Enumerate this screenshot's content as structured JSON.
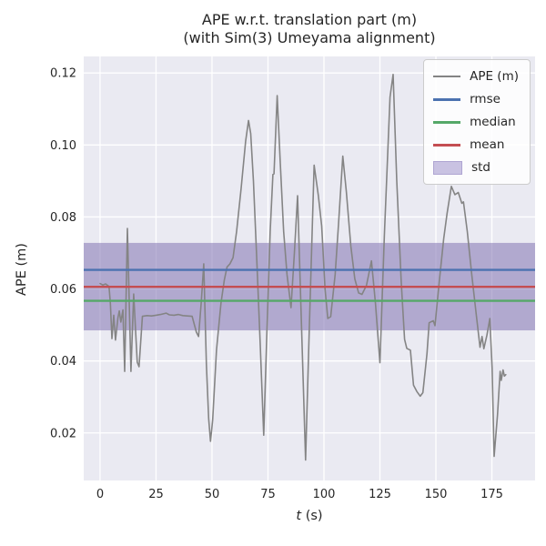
{
  "chart_data": {
    "type": "line",
    "title_line1": "APE w.r.t. translation part (m)",
    "title_line2": "(with Sim(3) Umeyama alignment)",
    "xlabel_var": "t",
    "xlabel_unit": " (s)",
    "ylabel": "APE (m)",
    "xlim": [
      -7.3,
      194.3
    ],
    "ylim": [
      0.0068,
      0.1246
    ],
    "grid": true,
    "legend_position": "upper right",
    "xticks": [
      {
        "label": "0",
        "value": 0
      },
      {
        "label": "25",
        "value": 25
      },
      {
        "label": "50",
        "value": 50
      },
      {
        "label": "75",
        "value": 75
      },
      {
        "label": "100",
        "value": 100
      },
      {
        "label": "125",
        "value": 125
      },
      {
        "label": "150",
        "value": 150
      },
      {
        "label": "175",
        "value": 175
      }
    ],
    "yticks": [
      {
        "label": "0.02",
        "value": 0.02
      },
      {
        "label": "0.04",
        "value": 0.04
      },
      {
        "label": "0.06",
        "value": 0.06
      },
      {
        "label": "0.08",
        "value": 0.08
      },
      {
        "label": "0.10",
        "value": 0.1
      },
      {
        "label": "0.12",
        "value": 0.12
      }
    ],
    "stats": {
      "rmse": 0.0653,
      "mean": 0.0606,
      "median": 0.0567,
      "std_low": 0.0485,
      "std_high": 0.0728
    },
    "series": {
      "name": "APE (m)",
      "t": [
        0,
        1.2,
        2.5,
        4.0,
        4.6,
        5.3,
        6.1,
        6.9,
        8.0,
        8.6,
        9.3,
        10.2,
        11.0,
        12.2,
        13.8,
        15.0,
        16.6,
        17.4,
        18.9,
        21,
        23,
        25,
        27,
        29.5,
        31,
        33,
        35,
        37,
        39,
        41.1,
        43,
        44,
        45.2,
        46.3,
        47.5,
        48.5,
        49.3,
        50.3,
        52,
        54,
        55.5,
        56.7,
        58,
        59.4,
        61,
        63,
        65,
        66.3,
        67.3,
        68.5,
        70,
        71.5,
        73.1,
        74.5,
        76,
        77.2,
        77.7,
        79.1,
        80.5,
        82,
        83.5,
        85.3,
        86.8,
        88.2,
        90.2,
        91.8,
        93.5,
        95.6,
        97.5,
        99.0,
        100.5,
        101.7,
        103.0,
        105,
        106.5,
        108.4,
        110,
        112,
        113.8,
        115.5,
        117,
        119,
        121.2,
        123,
        125,
        127,
        129.5,
        130.9,
        132.5,
        134.5,
        136,
        137,
        138.6,
        140,
        141.5,
        143,
        144.2,
        146,
        147,
        148.8,
        149.6,
        151.5,
        153.5,
        155,
        156.9,
        158.5,
        160,
        161.6,
        162.3,
        164,
        166,
        168,
        169.7,
        170.6,
        171.4,
        172.8,
        174.1,
        175.1,
        176,
        177.5,
        178.7,
        179.2,
        180,
        180.6,
        181.2
      ],
      "v": [
        0.0615,
        0.0611,
        0.0614,
        0.0607,
        0.056,
        0.0462,
        0.0527,
        0.0458,
        0.052,
        0.0539,
        0.0508,
        0.0542,
        0.0371,
        0.0768,
        0.0371,
        0.0586,
        0.0397,
        0.0384,
        0.0524,
        0.0526,
        0.0525,
        0.0527,
        0.0529,
        0.0533,
        0.0528,
        0.0527,
        0.0529,
        0.0526,
        0.0525,
        0.0524,
        0.048,
        0.0468,
        0.0565,
        0.067,
        0.039,
        0.024,
        0.0177,
        0.0236,
        0.043,
        0.056,
        0.0625,
        0.0661,
        0.067,
        0.0687,
        0.076,
        0.088,
        0.101,
        0.1068,
        0.1032,
        0.09,
        0.068,
        0.045,
        0.0194,
        0.048,
        0.076,
        0.0918,
        0.092,
        0.1137,
        0.095,
        0.076,
        0.064,
        0.0548,
        0.07,
        0.0859,
        0.045,
        0.0125,
        0.05,
        0.0944,
        0.086,
        0.0775,
        0.06,
        0.0518,
        0.0523,
        0.064,
        0.078,
        0.0969,
        0.087,
        0.072,
        0.0628,
        0.0589,
        0.0585,
        0.061,
        0.0678,
        0.056,
        0.0395,
        0.075,
        0.1133,
        0.1196,
        0.09,
        0.062,
        0.046,
        0.0435,
        0.043,
        0.0333,
        0.0315,
        0.0302,
        0.0312,
        0.042,
        0.0506,
        0.0512,
        0.0498,
        0.062,
        0.074,
        0.081,
        0.0885,
        0.0862,
        0.0868,
        0.0838,
        0.0842,
        0.076,
        0.064,
        0.053,
        0.0438,
        0.0468,
        0.0434,
        0.0472,
        0.0518,
        0.038,
        0.0135,
        0.025,
        0.0371,
        0.0346,
        0.0375,
        0.0358,
        0.0362
      ]
    },
    "legend": [
      {
        "label": "APE (m)",
        "swatch": "line",
        "color": "#848484",
        "thickness": 2
      },
      {
        "label": "rmse",
        "swatch": "line",
        "color": "#4C72B0",
        "thickness": 3
      },
      {
        "label": "median",
        "swatch": "line",
        "color": "#55A868",
        "thickness": 3
      },
      {
        "label": "mean",
        "swatch": "line",
        "color": "#C44E52",
        "thickness": 3
      },
      {
        "label": "std",
        "swatch": "patch",
        "color": "#C9C2E2",
        "border": "#AFA5D2"
      }
    ]
  },
  "colors": {
    "figure_bg": "#ffffff",
    "axes_bg": "#EAEAF2",
    "grid": "#ffffff",
    "ape_line": "#848484",
    "rmse_line": "#4C72B0",
    "median_line": "#55A868",
    "mean_line": "#C44E52",
    "std_band": "#8172B2",
    "std_band_alpha": 0.55,
    "text": "#262626"
  }
}
